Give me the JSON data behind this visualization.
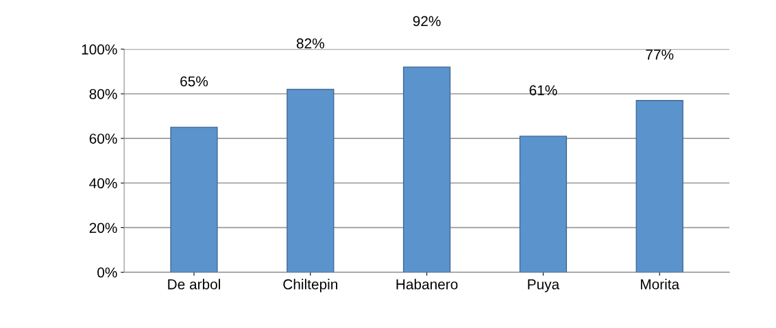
{
  "chart_data": {
    "type": "bar",
    "categories": [
      "De arbol",
      "Chiltepin",
      "Habanero",
      "Puya",
      "Morita"
    ],
    "values": [
      65,
      82,
      92,
      61,
      77
    ],
    "value_labels": [
      "65%",
      "82%",
      "92%",
      "61%",
      "77%"
    ],
    "color": "#5b93cd",
    "ylim": [
      0,
      100
    ],
    "yticks": [
      {
        "value": 0,
        "label": "0%"
      },
      {
        "value": 20,
        "label": "20%"
      },
      {
        "value": 40,
        "label": "40%"
      },
      {
        "value": 60,
        "label": "60%"
      },
      {
        "value": 80,
        "label": "80%"
      },
      {
        "value": 100,
        "label": "100%"
      }
    ],
    "grid": "y"
  }
}
